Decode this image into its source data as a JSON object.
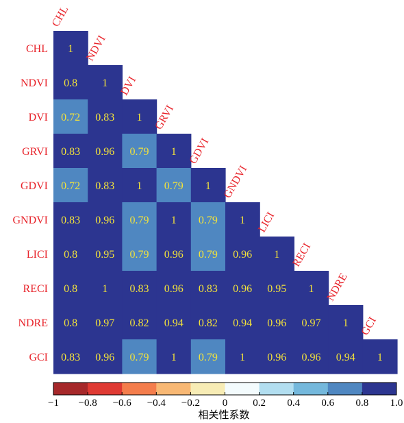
{
  "chart_data": {
    "type": "heatmap",
    "variables": [
      "CHL",
      "NDVI",
      "DVI",
      "GRVI",
      "GDVI",
      "GNDVI",
      "LICI",
      "RECI",
      "NDRE",
      "GCI"
    ],
    "matrix": [
      [
        "1"
      ],
      [
        "0.8",
        "1"
      ],
      [
        "0.72",
        "0.83",
        "1"
      ],
      [
        "0.83",
        "0.96",
        "0.79",
        "1"
      ],
      [
        "0.72",
        "0.83",
        "1",
        "0.79",
        "1"
      ],
      [
        "0.83",
        "0.96",
        "0.79",
        "1",
        "0.79",
        "1"
      ],
      [
        "0.8",
        "0.95",
        "0.79",
        "0.96",
        "0.79",
        "0.96",
        "1"
      ],
      [
        "0.8",
        "1",
        "0.83",
        "0.96",
        "0.83",
        "0.96",
        "0.95",
        "1"
      ],
      [
        "0.8",
        "0.97",
        "0.82",
        "0.94",
        "0.82",
        "0.94",
        "0.96",
        "0.97",
        "1"
      ],
      [
        "0.83",
        "0.96",
        "0.79",
        "1",
        "0.79",
        "1",
        "0.96",
        "0.96",
        "0.94",
        "1"
      ]
    ],
    "colorbar": {
      "ticks": [
        "−1",
        "−0.8",
        "−0.6",
        "−0.4",
        "−0.2",
        "0",
        "0.2",
        "0.4",
        "0.6",
        "0.8",
        "1.0"
      ],
      "colors": [
        "#a6282a",
        "#df3a33",
        "#f47d4c",
        "#f8b874",
        "#f7ecb5",
        "#f3fbfd",
        "#b2def0",
        "#74b8dc",
        "#4f87c1",
        "#2c3590"
      ],
      "label": "相关性系数",
      "range": [
        -1,
        1
      ]
    },
    "label_color": "#e8242b",
    "value_text_color": "#f2e23b"
  }
}
